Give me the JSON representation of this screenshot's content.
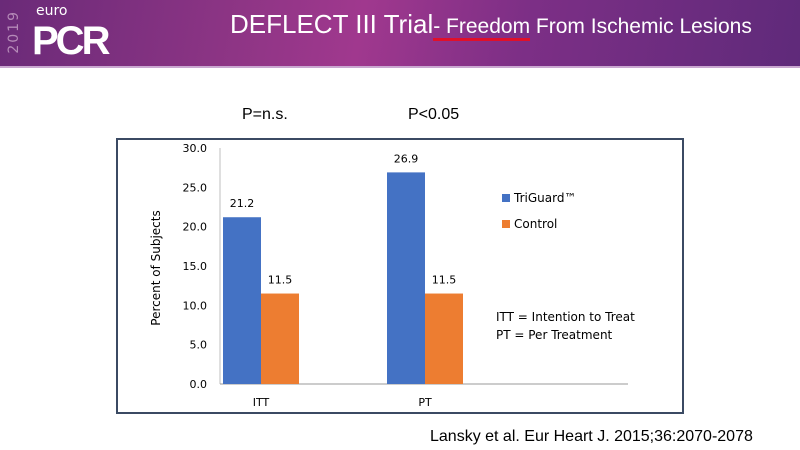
{
  "header": {
    "logo_year": "2019",
    "logo_euro": "euro",
    "logo_pcr": "PCR",
    "title_part1": "DEFLECT III Trial",
    "title_part2": "- Freedom",
    "title_part3": " From Ischemic Lesions"
  },
  "annotations": {
    "p_itt": "P=n.s.",
    "p_pt": "P<0.05",
    "legend_note_1": "ITT = Intention to Treat",
    "legend_note_2": "PT = Per Treatment"
  },
  "citation": "Lansky et al. Eur Heart J. 2015;36:2070-2078",
  "chart_data": {
    "type": "bar",
    "categories": [
      "ITT",
      "PT"
    ],
    "series": [
      {
        "name": "TriGuard™",
        "values": [
          21.2,
          26.9
        ],
        "color": "#4472c4"
      },
      {
        "name": "Control",
        "values": [
          11.5,
          11.5
        ],
        "color": "#ed7d31"
      }
    ],
    "ylabel": "Percent of Subjects",
    "xlabel": "",
    "ylim": [
      0,
      30
    ],
    "yticks": [
      "0.0",
      "5.0",
      "10.0",
      "15.0",
      "20.0",
      "25.0",
      "30.0"
    ],
    "data_labels": [
      [
        "21.2",
        "26.9"
      ],
      [
        "11.5",
        "11.5"
      ]
    ],
    "grid": false,
    "legend": "right"
  }
}
